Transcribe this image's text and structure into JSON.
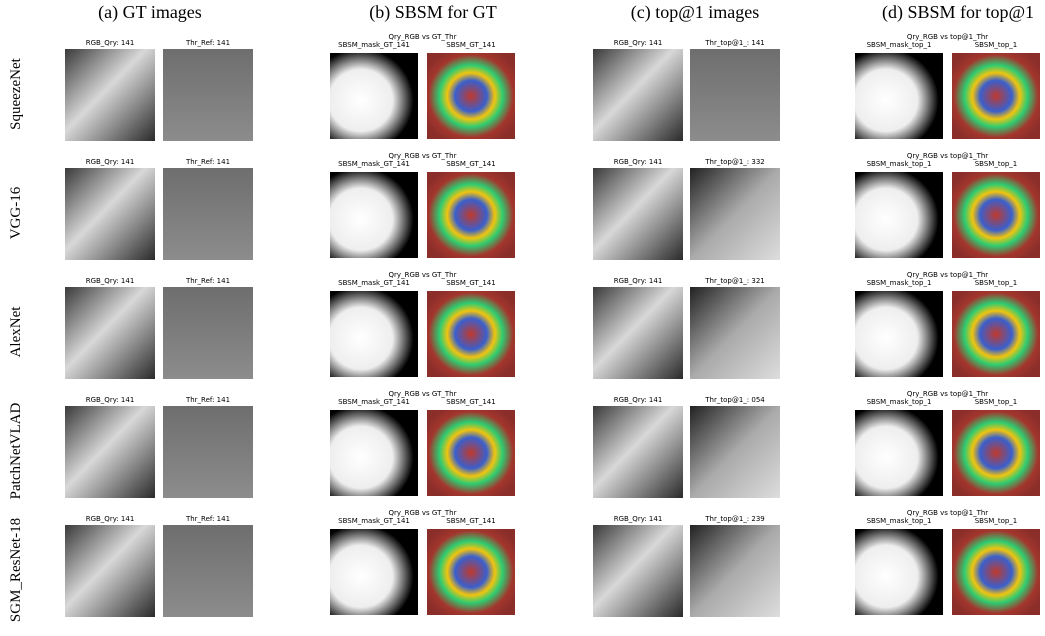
{
  "column_titles": [
    "(a) GT images",
    "(b) SBSM for GT",
    "(c) top@1 images",
    "(d) SBSM for top@1"
  ],
  "rows": [
    {
      "label": "SqueezeNet",
      "gt": [
        "RGB_Qry: 141",
        "Thr_Ref: 141"
      ],
      "sbsm_gt": {
        "title": "Qry_RGB vs GT_Thr",
        "captions": [
          "SBSM_mask_GT_141",
          "SBSM_GT_141"
        ]
      },
      "top1": [
        "RGB_Qry: 141",
        "Thr_top@1_: 141"
      ],
      "sbsm_top1": {
        "title": "Qry_RGB vs top@1_Thr",
        "captions": [
          "SBSM_mask_top_1",
          "SBSM_top_1"
        ]
      }
    },
    {
      "label": "VGG-16",
      "gt": [
        "RGB_Qry: 141",
        "Thr_Ref: 141"
      ],
      "sbsm_gt": {
        "title": "Qry_RGB vs GT_Thr",
        "captions": [
          "SBSM_mask_GT_141",
          "SBSM_GT_141"
        ]
      },
      "top1": [
        "RGB_Qry: 141",
        "Thr_top@1_: 332"
      ],
      "sbsm_top1": {
        "title": "Qry_RGB vs top@1_Thr",
        "captions": [
          "SBSM_mask_top_1",
          "SBSM_top_1"
        ]
      }
    },
    {
      "label": "AlexNet",
      "gt": [
        "RGB_Qry: 141",
        "Thr_Ref: 141"
      ],
      "sbsm_gt": {
        "title": "Qry_RGB vs GT_Thr",
        "captions": [
          "SBSM_mask_GT_141",
          "SBSM_GT_141"
        ]
      },
      "top1": [
        "RGB_Qry: 141",
        "Thr_top@1_: 321"
      ],
      "sbsm_top1": {
        "title": "Qry_RGB vs top@1_Thr",
        "captions": [
          "SBSM_mask_top_1",
          "SBSM_top_1"
        ]
      }
    },
    {
      "label": "PatchNetVLAD",
      "gt": [
        "RGB_Qry: 141",
        "Thr_Ref: 141"
      ],
      "sbsm_gt": {
        "title": "Qry_RGB vs GT_Thr",
        "captions": [
          "SBSM_mask_GT_141",
          "SBSM_GT_141"
        ]
      },
      "top1": [
        "RGB_Qry: 141",
        "Thr_top@1_: 054"
      ],
      "sbsm_top1": {
        "title": "Qry_RGB vs top@1_Thr",
        "captions": [
          "SBSM_mask_top_1",
          "SBSM_top_1"
        ]
      }
    },
    {
      "label": "SGM_ResNet-18",
      "gt": [
        "RGB_Qry: 141",
        "Thr_Ref: 141"
      ],
      "sbsm_gt": {
        "title": "Qry_RGB vs GT_Thr",
        "captions": [
          "SBSM_mask_GT_141",
          "SBSM_GT_141"
        ]
      },
      "top1": [
        "RGB_Qry: 141",
        "Thr_top@1_: 239"
      ],
      "sbsm_top1": {
        "title": "Qry_RGB vs top@1_Thr",
        "captions": [
          "SBSM_mask_top_1",
          "SBSM_top_1"
        ]
      }
    }
  ]
}
